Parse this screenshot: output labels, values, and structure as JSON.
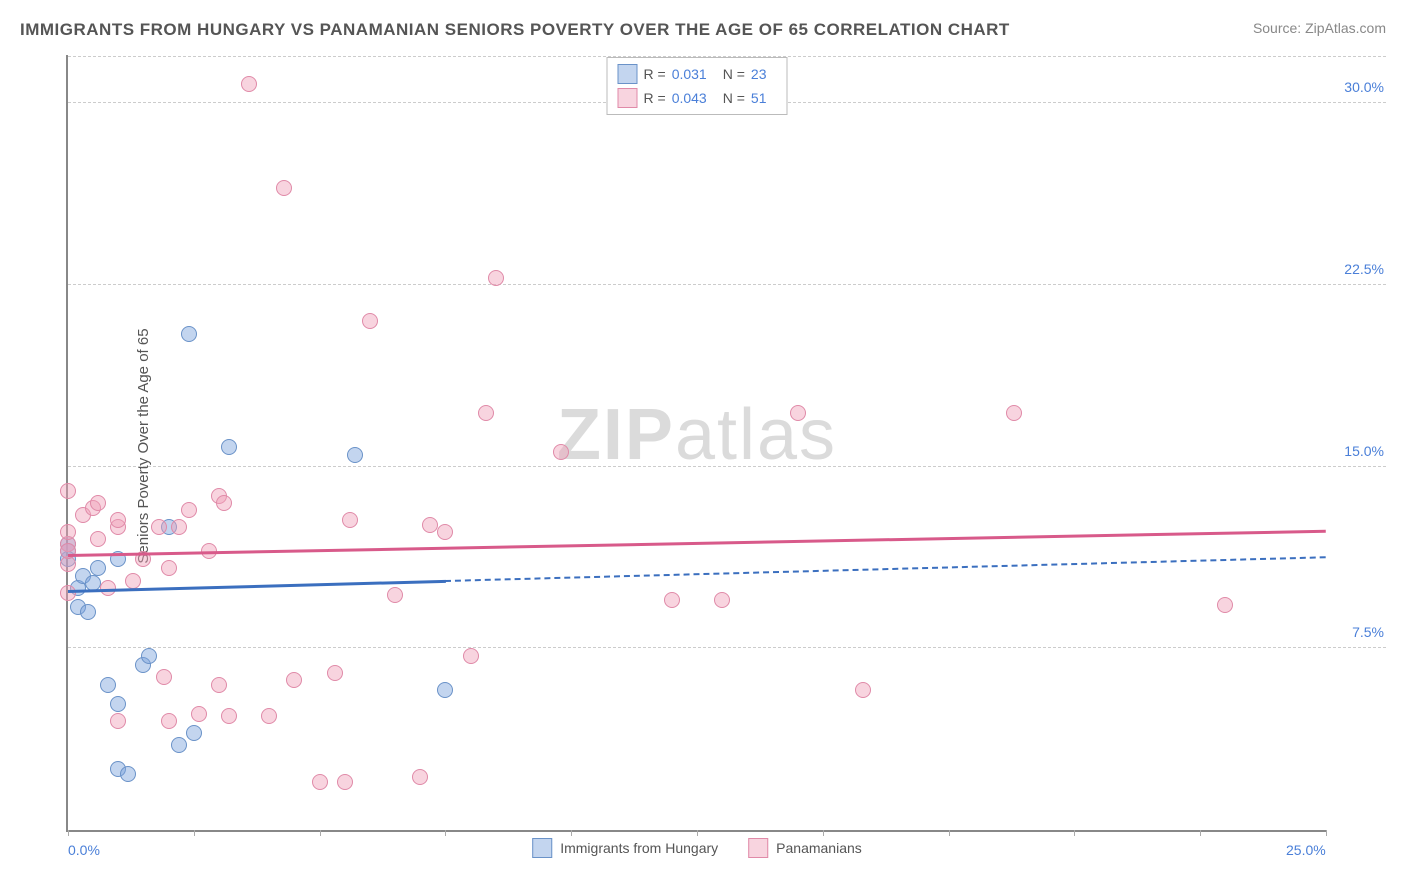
{
  "title": "IMMIGRANTS FROM HUNGARY VS PANAMANIAN SENIORS POVERTY OVER THE AGE OF 65 CORRELATION CHART",
  "source": "Source: ZipAtlas.com",
  "ylabel": "Seniors Poverty Over the Age of 65",
  "watermark_zip": "ZIP",
  "watermark_atlas": "atlas",
  "chart": {
    "type": "scatter",
    "xlim": [
      0,
      25
    ],
    "ylim": [
      0,
      32
    ],
    "xticks": [
      0,
      25
    ],
    "xtick_labels": [
      "0.0%",
      "25.0%"
    ],
    "xtick_minor": [
      2.5,
      5,
      7.5,
      10,
      12.5,
      15,
      17.5,
      20,
      22.5
    ],
    "yticks": [
      7.5,
      15,
      22.5,
      30
    ],
    "ytick_labels": [
      "7.5%",
      "15.0%",
      "22.5%",
      "30.0%"
    ],
    "grid_color": "#cccccc",
    "background_color": "#ffffff",
    "axis_color": "#888888"
  },
  "series": [
    {
      "name": "Immigrants from Hungary",
      "color_fill": "rgba(122,162,219,0.45)",
      "color_stroke": "#6a92c8",
      "marker_radius": 8,
      "R": "0.031",
      "N": "23",
      "trend": {
        "x1": 0,
        "y1": 9.8,
        "x2": 25,
        "y2": 11.2,
        "solid_until_x": 7.5
      },
      "trend_color": "#3b6fbf",
      "points": [
        [
          0.0,
          11.2
        ],
        [
          0.0,
          11.8
        ],
        [
          0.0,
          11.5
        ],
        [
          0.2,
          10.0
        ],
        [
          0.2,
          9.2
        ],
        [
          0.3,
          10.5
        ],
        [
          0.4,
          9.0
        ],
        [
          0.5,
          10.2
        ],
        [
          0.6,
          10.8
        ],
        [
          0.8,
          6.0
        ],
        [
          1.0,
          2.5
        ],
        [
          1.0,
          5.2
        ],
        [
          1.0,
          11.2
        ],
        [
          1.2,
          2.3
        ],
        [
          1.5,
          6.8
        ],
        [
          1.6,
          7.2
        ],
        [
          2.0,
          12.5
        ],
        [
          2.2,
          3.5
        ],
        [
          2.4,
          20.5
        ],
        [
          2.5,
          4.0
        ],
        [
          3.2,
          15.8
        ],
        [
          5.7,
          15.5
        ],
        [
          7.5,
          5.8
        ]
      ]
    },
    {
      "name": "Panamanians",
      "color_fill": "rgba(240,160,185,0.45)",
      "color_stroke": "#e08aa8",
      "marker_radius": 8,
      "R": "0.043",
      "N": "51",
      "trend": {
        "x1": 0,
        "y1": 11.3,
        "x2": 25,
        "y2": 12.3,
        "solid_until_x": 25
      },
      "trend_color": "#d85a8a",
      "points": [
        [
          0.0,
          11.8
        ],
        [
          0.0,
          12.3
        ],
        [
          0.0,
          14.0
        ],
        [
          0.0,
          11.0
        ],
        [
          0.0,
          11.5
        ],
        [
          0.0,
          9.8
        ],
        [
          0.3,
          13.0
        ],
        [
          0.5,
          13.3
        ],
        [
          0.6,
          12.0
        ],
        [
          0.6,
          13.5
        ],
        [
          0.8,
          10.0
        ],
        [
          1.0,
          12.5
        ],
        [
          1.0,
          4.5
        ],
        [
          1.0,
          12.8
        ],
        [
          1.3,
          10.3
        ],
        [
          1.5,
          11.2
        ],
        [
          1.8,
          12.5
        ],
        [
          1.9,
          6.3
        ],
        [
          2.0,
          10.8
        ],
        [
          2.0,
          4.5
        ],
        [
          2.2,
          12.5
        ],
        [
          2.4,
          13.2
        ],
        [
          2.6,
          4.8
        ],
        [
          2.8,
          11.5
        ],
        [
          3.0,
          6.0
        ],
        [
          3.0,
          13.8
        ],
        [
          3.1,
          13.5
        ],
        [
          3.2,
          4.7
        ],
        [
          3.6,
          30.8
        ],
        [
          4.0,
          4.7
        ],
        [
          4.3,
          26.5
        ],
        [
          4.5,
          6.2
        ],
        [
          5.0,
          2.0
        ],
        [
          5.3,
          6.5
        ],
        [
          5.5,
          2.0
        ],
        [
          5.6,
          12.8
        ],
        [
          6.0,
          21.0
        ],
        [
          6.5,
          9.7
        ],
        [
          7.0,
          2.2
        ],
        [
          7.2,
          12.6
        ],
        [
          7.5,
          12.3
        ],
        [
          8.0,
          7.2
        ],
        [
          8.3,
          17.2
        ],
        [
          8.5,
          22.8
        ],
        [
          9.8,
          15.6
        ],
        [
          12.0,
          9.5
        ],
        [
          13.0,
          9.5
        ],
        [
          14.5,
          17.2
        ],
        [
          15.8,
          5.8
        ],
        [
          18.8,
          17.2
        ],
        [
          23.0,
          9.3
        ]
      ]
    }
  ],
  "legend_bottom": [
    {
      "label": "Immigrants from Hungary",
      "fill": "rgba(122,162,219,0.45)",
      "stroke": "#6a92c8"
    },
    {
      "label": "Panamanians",
      "fill": "rgba(240,160,185,0.45)",
      "stroke": "#e08aa8"
    }
  ],
  "legend_labels": {
    "R": "R  =",
    "N": "N  ="
  }
}
